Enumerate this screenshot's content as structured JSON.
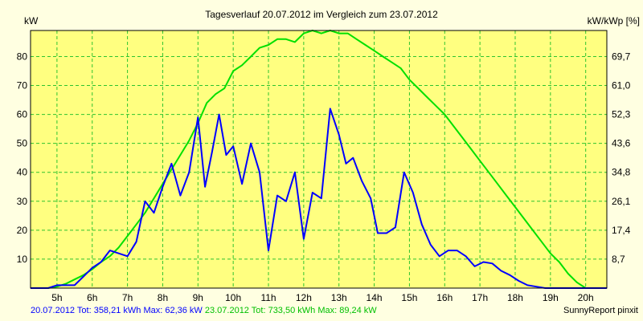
{
  "chart_data": {
    "type": "line",
    "title": "Tagesverlauf 20.07.2012 im Vergleich zum 23.07.2012",
    "ylabel_left": "kW",
    "ylabel_right": "kW/kWp [%]",
    "x_ticks": [
      "5h",
      "6h",
      "7h",
      "8h",
      "9h",
      "10h",
      "11h",
      "12h",
      "13h",
      "14h",
      "15h",
      "16h",
      "17h",
      "18h",
      "19h",
      "20h"
    ],
    "y_ticks_left": [
      "10",
      "20",
      "30",
      "40",
      "50",
      "60",
      "70",
      "80"
    ],
    "y_ticks_right": [
      "8,7",
      "17,4",
      "26,1",
      "34,8",
      "43,6",
      "52,3",
      "61,0",
      "69,7"
    ],
    "xlim": [
      4.25,
      20.6
    ],
    "ylim": [
      0,
      89
    ],
    "grid": true,
    "colors": {
      "background": "#ffffe1",
      "plot": "#ffff80",
      "grid": "#2ec42e",
      "series1": "#0000ff",
      "series2": "#00e000"
    },
    "series": [
      {
        "name": "20.07.2012",
        "color": "#0000ff",
        "x": [
          4.25,
          4.75,
          5.0,
          5.25,
          5.5,
          5.75,
          6.0,
          6.25,
          6.5,
          6.75,
          7.0,
          7.25,
          7.5,
          7.75,
          8.0,
          8.25,
          8.5,
          8.75,
          9.0,
          9.2,
          9.4,
          9.6,
          9.8,
          10.0,
          10.25,
          10.5,
          10.75,
          11.0,
          11.25,
          11.5,
          11.75,
          12.0,
          12.25,
          12.5,
          12.75,
          13.0,
          13.2,
          13.4,
          13.65,
          13.9,
          14.1,
          14.35,
          14.6,
          14.85,
          15.1,
          15.35,
          15.6,
          15.85,
          16.1,
          16.35,
          16.6,
          16.85,
          17.1,
          17.35,
          17.6,
          17.85,
          18.1,
          18.35,
          18.6,
          18.85,
          19.1,
          19.35,
          19.6,
          20.6
        ],
        "values": [
          0,
          0,
          1,
          1,
          1,
          4,
          7,
          9,
          13,
          12,
          11,
          16,
          30,
          26,
          35,
          43,
          32,
          40,
          59,
          35,
          47,
          60,
          46,
          49,
          36,
          50,
          40,
          13,
          32,
          30,
          40,
          17,
          33,
          31,
          62,
          53,
          43,
          45,
          37,
          31,
          19,
          19,
          21,
          40,
          33,
          22,
          15,
          11,
          13,
          13,
          11,
          7.5,
          9,
          8.5,
          6,
          4.5,
          2.5,
          1,
          0.5,
          0,
          0,
          0,
          0,
          0
        ]
      },
      {
        "name": "23.07.2012",
        "color": "#00e000",
        "x": [
          4.25,
          4.5,
          4.75,
          5.0,
          5.25,
          5.5,
          5.75,
          6.0,
          6.25,
          6.5,
          6.75,
          7.0,
          7.25,
          7.5,
          7.75,
          8.0,
          8.25,
          8.5,
          8.75,
          9.0,
          9.25,
          9.5,
          9.75,
          10.0,
          10.25,
          10.5,
          10.75,
          11.0,
          11.25,
          11.5,
          11.75,
          12.0,
          12.25,
          12.5,
          12.75,
          13.0,
          13.25,
          13.5,
          13.75,
          14.0,
          14.25,
          14.5,
          14.75,
          15.0,
          15.25,
          15.5,
          15.75,
          16.0,
          16.25,
          16.5,
          16.75,
          17.0,
          17.25,
          17.5,
          17.75,
          18.0,
          18.25,
          18.5,
          18.75,
          19.0,
          19.25,
          19.5,
          19.75,
          20.0,
          20.6
        ],
        "values": [
          0,
          0,
          0,
          0.5,
          1.5,
          3,
          4.5,
          6.5,
          9,
          11,
          14,
          18,
          22,
          26,
          31,
          36,
          41,
          46,
          51,
          57,
          64,
          67,
          69,
          75,
          77,
          80,
          83,
          84,
          86,
          86,
          85,
          88,
          89,
          88,
          89,
          88,
          88,
          86,
          84,
          82,
          80,
          78,
          76,
          72,
          69,
          66,
          63,
          60,
          56,
          52,
          48,
          44,
          40,
          36,
          32,
          28,
          24,
          20,
          16,
          12,
          9,
          5,
          2,
          0,
          0
        ]
      }
    ],
    "legend": [
      {
        "text": "20.07.2012 Tot: 358,21 kWh Max: 62,36 kW",
        "color": "#0000ff"
      },
      {
        "text": "23.07.2012 Tot: 733,50 kWh Max: 89,24 kW",
        "color": "#00c000"
      }
    ]
  },
  "footer": {
    "credit": "SunnyReport pinxit"
  }
}
